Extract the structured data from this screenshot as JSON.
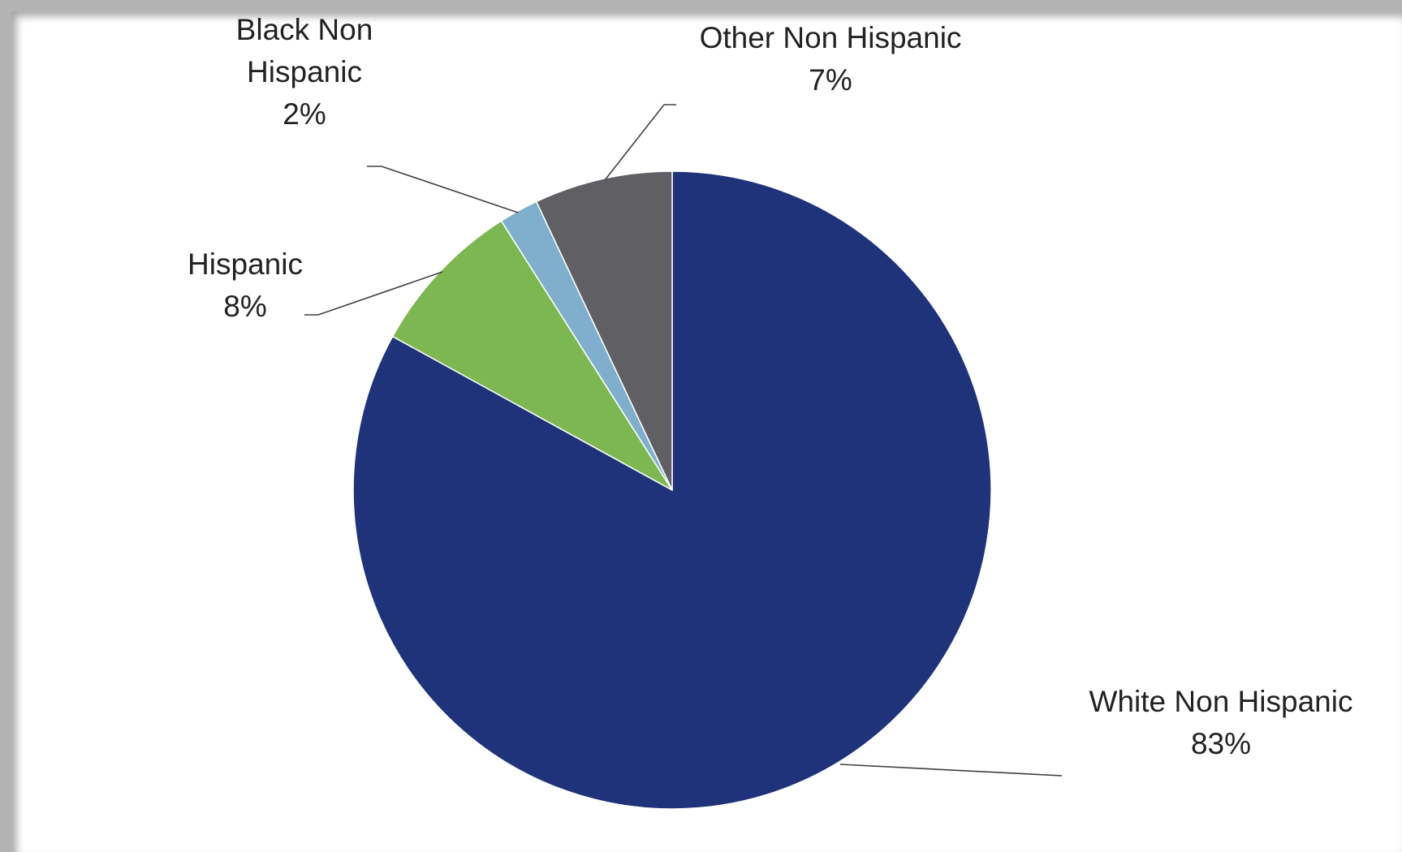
{
  "chart_data": {
    "type": "pie",
    "title": "",
    "start_angle_deg": 0,
    "direction": "clockwise",
    "legend": "none",
    "slices": [
      {
        "name": "White Non Hispanic",
        "label_lines": [
          "White Non Hispanic"
        ],
        "percent_label": "83%",
        "value": 83,
        "color": "#1f337a"
      },
      {
        "name": "Hispanic",
        "label_lines": [
          "Hispanic"
        ],
        "percent_label": "8%",
        "value": 8,
        "color": "#7db751"
      },
      {
        "name": "Black Non Hispanic",
        "label_lines": [
          "Black Non",
          "Hispanic"
        ],
        "percent_label": "2%",
        "value": 2,
        "color": "#80afcd"
      },
      {
        "name": "Other Non Hispanic",
        "label_lines": [
          "Other Non Hispanic"
        ],
        "percent_label": "7%",
        "value": 7,
        "color": "#606064"
      }
    ]
  }
}
